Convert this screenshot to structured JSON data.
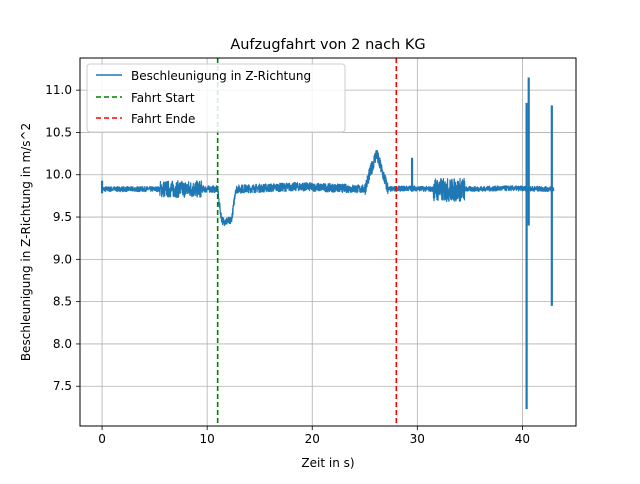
{
  "chart_data": {
    "type": "line",
    "title": "Aufzugfahrt von 2 nach KG",
    "xlabel": "Zeit in s)",
    "ylabel": "Beschleunigung in Z-Richtung in m/s^2",
    "xlim": [
      -2.1,
      45.1
    ],
    "ylim": [
      7.03,
      11.38
    ],
    "xticks": [
      0,
      10,
      20,
      30,
      40
    ],
    "xtick_labels": [
      "0",
      "10",
      "20",
      "30",
      "40"
    ],
    "yticks": [
      7.5,
      8.0,
      8.5,
      9.0,
      9.5,
      10.0,
      10.5,
      11.0
    ],
    "ytick_labels": [
      "7.5",
      "8.0",
      "8.5",
      "9.0",
      "9.5",
      "10.0",
      "10.5",
      "11.0"
    ],
    "grid": true,
    "legend_position": "top-left",
    "series": [
      {
        "name": "Beschleunigung in Z-Richtung",
        "color": "#1f77b4",
        "x_range": [
          0,
          43
        ],
        "profile": {
          "baseline": 9.83,
          "segments": [
            {
              "start": 0,
              "end": 5.5,
              "level": 9.83,
              "noise": 0.03
            },
            {
              "start": 5.5,
              "end": 9.5,
              "level": 9.83,
              "noise": 0.1
            },
            {
              "start": 9.5,
              "end": 11,
              "level": 9.83,
              "noise": 0.04
            },
            {
              "start": 11,
              "end": 12.7,
              "level": 9.45,
              "noise": 0.05
            },
            {
              "start": 12.7,
              "end": 25,
              "level": 9.86,
              "noise": 0.05
            },
            {
              "start": 25,
              "end": 27.2,
              "level": 10.25,
              "noise": 0.08
            },
            {
              "start": 27.2,
              "end": 31.5,
              "level": 9.84,
              "noise": 0.03
            },
            {
              "start": 31.5,
              "end": 34.5,
              "level": 9.82,
              "noise": 0.14
            },
            {
              "start": 34.5,
              "end": 43,
              "level": 9.84,
              "noise": 0.03
            }
          ],
          "spikes": [
            {
              "x": 0.0,
              "min": 9.78,
              "max": 9.93
            },
            {
              "x": 29.5,
              "min": 9.8,
              "max": 10.2
            },
            {
              "x": 40.4,
              "min": 7.23,
              "max": 10.85
            },
            {
              "x": 40.6,
              "min": 9.4,
              "max": 11.15
            },
            {
              "x": 42.8,
              "min": 8.45,
              "max": 10.82
            }
          ]
        }
      },
      {
        "name": "Fahrt Start",
        "color": "#008000",
        "style": "dashed",
        "x": 11
      },
      {
        "name": "Fahrt Ende",
        "color": "#ff0000",
        "style": "dashed",
        "x": 28
      }
    ]
  }
}
